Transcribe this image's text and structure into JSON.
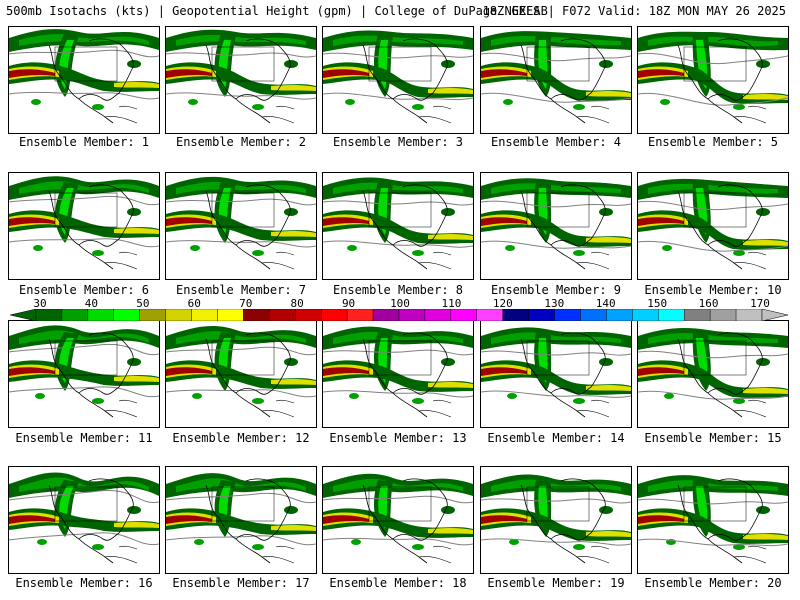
{
  "header": {
    "left": "500mb Isotachs (kts) | Geopotential Height (gpm) | College of DuPage NEXLAB",
    "right": "18Z GEFS | F072 Valid: 18Z MON MAY 26 2025"
  },
  "members": [
    {
      "caption": "Ensemble Member: 1"
    },
    {
      "caption": "Ensemble Member: 2"
    },
    {
      "caption": "Ensemble Member: 3"
    },
    {
      "caption": "Ensemble Member: 4"
    },
    {
      "caption": "Ensemble Member: 5"
    },
    {
      "caption": "Ensemble Member: 6"
    },
    {
      "caption": "Ensemble Member: 7"
    },
    {
      "caption": "Ensemble Member: 8"
    },
    {
      "caption": "Ensemble Member: 9"
    },
    {
      "caption": "Ensemble Member: 10"
    },
    {
      "caption": "Ensemble Member: 11"
    },
    {
      "caption": "Ensemble Member: 12"
    },
    {
      "caption": "Ensemble Member: 13"
    },
    {
      "caption": "Ensemble Member: 14"
    },
    {
      "caption": "Ensemble Member: 15"
    },
    {
      "caption": "Ensemble Member: 16"
    },
    {
      "caption": "Ensemble Member: 17"
    },
    {
      "caption": "Ensemble Member: 18"
    },
    {
      "caption": "Ensemble Member: 19"
    },
    {
      "caption": "Ensemble Member: 20"
    }
  ],
  "colorbar": {
    "labels": [
      "30",
      "40",
      "50",
      "60",
      "70",
      "80",
      "90",
      "100",
      "110",
      "120",
      "130",
      "140",
      "150",
      "160",
      "170"
    ],
    "colors": [
      "#006400",
      "#00a000",
      "#00dc00",
      "#00ff00",
      "#a0a000",
      "#d2d200",
      "#f0f000",
      "#ffff00",
      "#8b0000",
      "#b00000",
      "#d00000",
      "#ff0000",
      "#ff2020",
      "#a000a0",
      "#c000c0",
      "#e000e0",
      "#ff00ff",
      "#ff40ff",
      "#000080",
      "#0000c0",
      "#0030ff",
      "#0070ff",
      "#00a0ff",
      "#00d0ff",
      "#00ffff",
      "#808080",
      "#a0a0a0",
      "#c0c0c0"
    ]
  },
  "map_colors": {
    "green_dark": "#006400",
    "green": "#00a000",
    "green_light": "#00dc00",
    "yellow": "#e0e000",
    "red": "#a00000",
    "contour": "#808080"
  }
}
